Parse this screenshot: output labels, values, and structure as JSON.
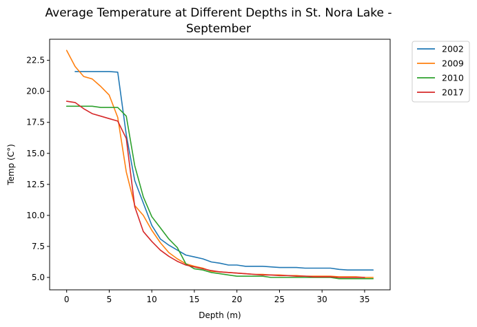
{
  "chart_data": {
    "type": "line",
    "title_lines": [
      "Average Temperature at Different Depths in St. Nora Lake -",
      "September"
    ],
    "xlabel": "Depth (m)",
    "ylabel": "Temp (C°)",
    "xlim": [
      -2,
      38
    ],
    "ylim": [
      4.0,
      24.2
    ],
    "xticks": [
      0,
      5,
      10,
      15,
      20,
      25,
      30,
      35
    ],
    "yticks": [
      5.0,
      7.5,
      10.0,
      12.5,
      15.0,
      17.5,
      20.0,
      22.5
    ],
    "ytick_labels": [
      "5.0",
      "7.5",
      "10.0",
      "12.5",
      "15.0",
      "17.5",
      "20.0",
      "22.5"
    ],
    "grid": false,
    "legend_position": "outside-top-right",
    "series": [
      {
        "name": "2002",
        "color": "#1f77b4",
        "x": [
          1,
          2,
          3,
          4,
          5,
          6,
          7,
          8,
          9,
          10,
          11,
          12,
          13,
          14,
          15,
          16,
          17,
          18,
          19,
          20,
          21,
          22,
          23,
          24,
          25,
          26,
          27,
          28,
          29,
          30,
          31,
          32,
          33,
          34,
          35,
          36
        ],
        "y": [
          21.6,
          21.6,
          21.6,
          21.6,
          21.6,
          21.55,
          16.5,
          12.8,
          11.0,
          9.2,
          8.1,
          7.6,
          7.2,
          6.8,
          6.65,
          6.5,
          6.25,
          6.15,
          6.0,
          6.0,
          5.9,
          5.9,
          5.9,
          5.85,
          5.8,
          5.8,
          5.8,
          5.75,
          5.75,
          5.75,
          5.75,
          5.65,
          5.6,
          5.6,
          5.6,
          5.6
        ]
      },
      {
        "name": "2009",
        "color": "#ff7f0e",
        "x": [
          0,
          1,
          2,
          3,
          4,
          5,
          6,
          7,
          8,
          9,
          10,
          11,
          12,
          13,
          14,
          15,
          16,
          17,
          18,
          19,
          20,
          21,
          22,
          23,
          24,
          25,
          26,
          27,
          28,
          29,
          30,
          31,
          32,
          33,
          34,
          35,
          36
        ],
        "y": [
          23.3,
          22.0,
          21.2,
          21.0,
          20.4,
          19.7,
          17.9,
          13.5,
          10.8,
          10.0,
          8.8,
          7.8,
          7.0,
          6.5,
          6.1,
          5.9,
          5.75,
          5.5,
          5.45,
          5.4,
          5.35,
          5.3,
          5.25,
          5.25,
          5.2,
          5.2,
          5.15,
          5.15,
          5.1,
          5.1,
          5.1,
          5.1,
          5.05,
          5.05,
          5.05,
          5.0,
          5.0
        ]
      },
      {
        "name": "2010",
        "color": "#2ca02c",
        "x": [
          0,
          1,
          2,
          3,
          4,
          5,
          6,
          7,
          8,
          9,
          10,
          11,
          12,
          13,
          14,
          15,
          16,
          17,
          18,
          19,
          20,
          21,
          22,
          23,
          24,
          25,
          26,
          27,
          28,
          29,
          30,
          31,
          32,
          33,
          34,
          35,
          36
        ],
        "y": [
          18.8,
          18.8,
          18.8,
          18.8,
          18.7,
          18.7,
          18.7,
          18.0,
          14.0,
          11.5,
          9.9,
          9.0,
          8.1,
          7.4,
          6.1,
          5.7,
          5.6,
          5.4,
          5.3,
          5.2,
          5.1,
          5.1,
          5.1,
          5.1,
          5.0,
          5.0,
          5.0,
          5.0,
          5.0,
          5.0,
          5.0,
          5.0,
          4.9,
          4.9,
          4.9,
          4.9,
          4.9
        ]
      },
      {
        "name": "2017",
        "color": "#d62728",
        "x": [
          0,
          1,
          2,
          3,
          4,
          5,
          6,
          7,
          8,
          9,
          10,
          11,
          12,
          13,
          14,
          15,
          16,
          17,
          18,
          19,
          20,
          21,
          22,
          23,
          24,
          25,
          26,
          27,
          28,
          29,
          30,
          31,
          32,
          33,
          34,
          35
        ],
        "y": [
          19.2,
          19.1,
          18.6,
          18.2,
          18.0,
          17.8,
          17.6,
          16.2,
          10.7,
          8.7,
          7.9,
          7.2,
          6.7,
          6.3,
          6.0,
          5.85,
          5.7,
          5.55,
          5.45,
          5.4,
          5.35,
          5.3,
          5.25,
          5.2,
          5.2,
          5.15,
          5.15,
          5.1,
          5.1,
          5.05,
          5.05,
          5.05,
          5.0,
          5.0,
          5.0,
          5.0
        ]
      }
    ]
  }
}
